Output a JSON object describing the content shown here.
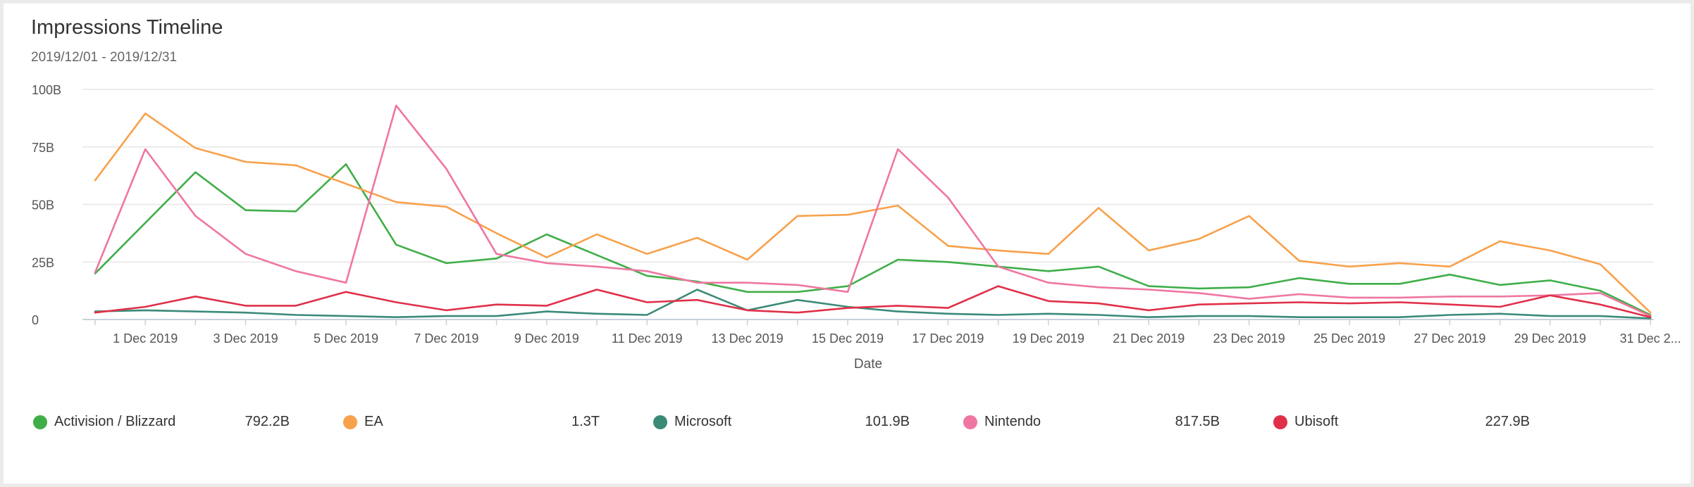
{
  "title": "Impressions Timeline",
  "subtitle": "2019/12/01 - 2019/12/31",
  "colors": {
    "activision": "#3fae49",
    "ea": "#f8a14b",
    "microsoft": "#3b8a78",
    "nintendo": "#ef76a2",
    "ubisoft": "#e03049"
  },
  "chart_data": {
    "type": "line",
    "xlabel": "Date",
    "ylabel": "",
    "ylim": [
      0,
      100
    ],
    "y_ticks": [
      "0",
      "25B",
      "50B",
      "75B",
      "100B"
    ],
    "y_tick_values": [
      0,
      25,
      50,
      75,
      100
    ],
    "x_tick_labels": [
      "1 Dec 2019",
      "3 Dec 2019",
      "5 Dec 2019",
      "7 Dec 2019",
      "9 Dec 2019",
      "11 Dec 2019",
      "13 Dec 2019",
      "15 Dec 2019",
      "17 Dec 2019",
      "19 Dec 2019",
      "21 Dec 2019",
      "23 Dec 2019",
      "25 Dec 2019",
      "27 Dec 2019",
      "29 Dec 2019",
      "31 Dec 2..."
    ],
    "x_tick_days": [
      1,
      3,
      5,
      7,
      9,
      11,
      13,
      15,
      17,
      19,
      21,
      23,
      25,
      27,
      29,
      31
    ],
    "x": [
      0,
      1,
      2,
      3,
      4,
      5,
      6,
      7,
      8,
      9,
      10,
      11,
      12,
      13,
      14,
      15,
      16,
      17,
      18,
      19,
      20,
      21,
      22,
      23,
      24,
      25,
      26,
      27,
      28,
      29,
      30,
      31
    ],
    "grid": true,
    "legend_position": "bottom",
    "series": [
      {
        "name": "Activision / Blizzard",
        "color_key": "activision",
        "total": "792.2B",
        "values": [
          20,
          42,
          64,
          47.5,
          47,
          67.5,
          32.5,
          24.5,
          26.5,
          37,
          28,
          19,
          16.5,
          12,
          12,
          14.5,
          26,
          25,
          23,
          21,
          23,
          14.5,
          13.5,
          14,
          18,
          15.5,
          15.5,
          19.5,
          15,
          17,
          12.5,
          2
        ]
      },
      {
        "name": "EA",
        "color_key": "ea",
        "total": "1.3T",
        "values": [
          60.5,
          89.5,
          74.5,
          68.5,
          67,
          59,
          51,
          49,
          37.5,
          27,
          37,
          28.5,
          35.5,
          26,
          45,
          45.5,
          49.5,
          32,
          30,
          28.5,
          48.5,
          30,
          35,
          45,
          25.5,
          23,
          24.5,
          23,
          34,
          30,
          24,
          3
        ]
      },
      {
        "name": "Microsoft",
        "color_key": "microsoft",
        "total": "101.9B",
        "values": [
          3.5,
          4,
          3.5,
          3,
          2,
          1.5,
          1,
          1.5,
          1.5,
          3.5,
          2.5,
          2,
          13,
          4,
          8.5,
          5.5,
          3.5,
          2.5,
          2,
          2.5,
          2,
          1,
          1.5,
          1.5,
          1,
          1,
          1,
          2,
          2.5,
          1.5,
          1.5,
          0.5
        ]
      },
      {
        "name": "Nintendo",
        "color_key": "nintendo",
        "total": "817.5B",
        "values": [
          20.5,
          74,
          45,
          28.5,
          21,
          16,
          93,
          65.5,
          28.5,
          24.5,
          23,
          21,
          16,
          16,
          15,
          12,
          74,
          53,
          23,
          16,
          14,
          13,
          11.5,
          9,
          11,
          9.5,
          9.5,
          10,
          10,
          10.5,
          11.5,
          1.5
        ]
      },
      {
        "name": "Ubisoft",
        "color_key": "ubisoft",
        "total": "227.9B",
        "values": [
          3,
          5.5,
          10,
          6,
          6,
          12,
          7.5,
          4,
          6.5,
          6,
          13,
          7.5,
          8.5,
          4,
          3,
          5,
          6,
          5,
          14.5,
          8,
          7,
          4,
          6.5,
          7,
          7.5,
          7,
          7.5,
          6.5,
          5.5,
          10.5,
          6.5,
          1
        ]
      }
    ]
  }
}
